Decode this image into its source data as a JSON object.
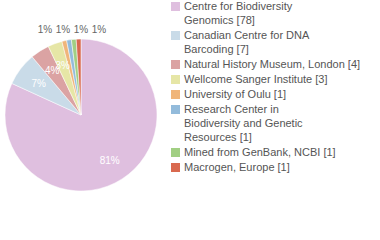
{
  "chart_data": {
    "type": "pie",
    "categories": [
      "Centre for Biodiversity\nGenomics [78]",
      "Canadian Centre for DNA\nBarcoding [7]",
      "Natural History Museum, London [4]",
      "Wellcome Sanger Institute [3]",
      "University of Oulu [1]",
      "Research Center in\nBiodiversity and Genetic\nResources [1]",
      "Mined from GenBank, NCBI [1]",
      "Macrogen, Europe [1]"
    ],
    "values": [
      81,
      7,
      4,
      3,
      1,
      1,
      1,
      1
    ],
    "value_labels": [
      "81%",
      "7%",
      "4%",
      "3%",
      "1%",
      "1%",
      "1%",
      "1%"
    ],
    "colors": [
      "#dfbfdf",
      "#c9dbe8",
      "#dba3a3",
      "#e6e6a6",
      "#f0b57a",
      "#93bbdb",
      "#a1cf83",
      "#d9694f"
    ],
    "data_labels": true,
    "legend": "right"
  }
}
